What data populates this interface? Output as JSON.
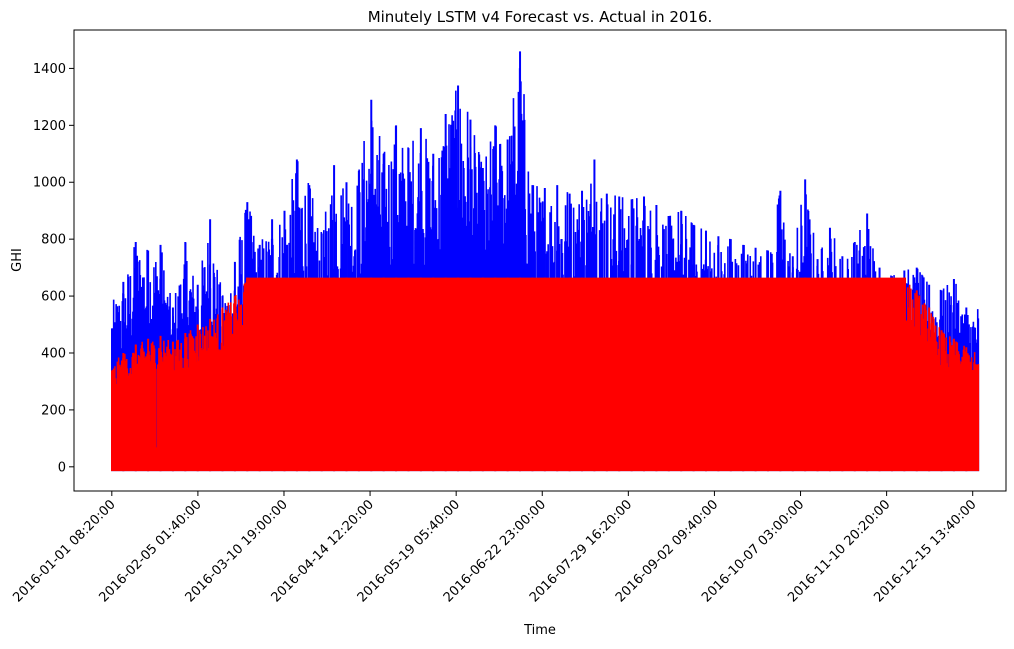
{
  "chart_data": {
    "type": "line",
    "title": "Minutely LSTM v4 Forecast vs. Actual in 2016.",
    "xlabel": "Time",
    "ylabel": "GHI",
    "ylim": [
      -85,
      1535
    ],
    "yticks": [
      0,
      200,
      400,
      600,
      800,
      1000,
      1200,
      1400
    ],
    "xticks": [
      {
        "label": "2016-01-01 08:20:00",
        "day": 0.35
      },
      {
        "label": "2016-02-05 01:40:00",
        "day": 35.07
      },
      {
        "label": "2016-03-10 19:00:00",
        "day": 69.79
      },
      {
        "label": "2016-04-14 12:20:00",
        "day": 104.51
      },
      {
        "label": "2016-05-19 05:40:00",
        "day": 139.24
      },
      {
        "label": "2016-06-22 23:00:00",
        "day": 173.96
      },
      {
        "label": "2016-07-29 16:20:00",
        "day": 208.68
      },
      {
        "label": "2016-09-02 09:40:00",
        "day": 243.4
      },
      {
        "label": "2016-10-07 03:00:00",
        "day": 278.13
      },
      {
        "label": "2016-11-10 20:20:00",
        "day": 312.85
      },
      {
        "label": "2016-12-15 13:40:00",
        "day": 347.57
      }
    ],
    "xlim_days": [
      -14.9,
      361.0
    ],
    "grid": false,
    "series": [
      {
        "name": "",
        "color": "#0000ff",
        "description_values": "daily peak GHI (approx.)",
        "x_days": [
          0,
          5,
          10,
          15,
          20,
          25,
          30,
          35,
          40,
          45,
          50,
          55,
          60,
          65,
          70,
          75,
          80,
          85,
          90,
          95,
          100,
          105,
          110,
          115,
          120,
          125,
          130,
          135,
          140,
          145,
          150,
          155,
          160,
          165,
          170,
          175,
          180,
          185,
          190,
          195,
          200,
          205,
          210,
          215,
          220,
          225,
          230,
          235,
          240,
          245,
          250,
          255,
          260,
          265,
          270,
          275,
          280,
          285,
          290,
          295,
          300,
          305,
          310,
          315,
          320,
          325,
          330,
          335,
          340,
          345,
          350,
          355,
          365
        ],
        "values": [
          570,
          650,
          790,
          760,
          780,
          560,
          790,
          640,
          870,
          600,
          720,
          930,
          780,
          870,
          900,
          1080,
          990,
          820,
          1060,
          1000,
          1040,
          1290,
          1100,
          1200,
          1120,
          1190,
          1100,
          1240,
          1340,
          1220,
          1050,
          1200,
          1150,
          1460,
          990,
          980,
          990,
          960,
          970,
          1080,
          960,
          950,
          940,
          950,
          920,
          880,
          900,
          850,
          830,
          810,
          800,
          780,
          770,
          760,
          970,
          740,
          1010,
          730,
          840,
          740,
          790,
          890,
          700,
          670,
          690,
          700,
          640,
          620,
          660,
          560,
          580,
          600,
          500
        ]
      },
      {
        "name": "",
        "color": "#ff0000",
        "description_values": "daily peak forecast GHI (approx.)",
        "x_days": [
          0,
          5,
          10,
          15,
          20,
          25,
          30,
          35,
          40,
          45,
          50,
          55,
          60,
          65,
          70,
          75,
          80,
          85,
          90,
          95,
          100,
          105,
          110,
          115,
          120,
          125,
          130,
          135,
          140,
          145,
          150,
          155,
          160,
          165,
          170,
          175,
          180,
          185,
          190,
          195,
          200,
          205,
          210,
          215,
          220,
          225,
          230,
          235,
          240,
          245,
          250,
          255,
          260,
          265,
          270,
          275,
          280,
          285,
          290,
          295,
          300,
          305,
          310,
          315,
          320,
          325,
          330,
          335,
          340,
          345,
          350,
          355,
          365
        ],
        "values": [
          360,
          400,
          430,
          450,
          460,
          440,
          470,
          500,
          520,
          560,
          600,
          665,
          665,
          665,
          665,
          665,
          665,
          665,
          665,
          665,
          665,
          665,
          665,
          665,
          665,
          665,
          665,
          665,
          665,
          665,
          665,
          665,
          665,
          665,
          665,
          665,
          665,
          665,
          665,
          665,
          665,
          665,
          665,
          665,
          665,
          665,
          665,
          665,
          665,
          665,
          665,
          665,
          665,
          665,
          665,
          665,
          665,
          665,
          665,
          665,
          665,
          665,
          665,
          665,
          665,
          620,
          560,
          480,
          450,
          420,
          400,
          380,
          360
        ]
      }
    ]
  }
}
